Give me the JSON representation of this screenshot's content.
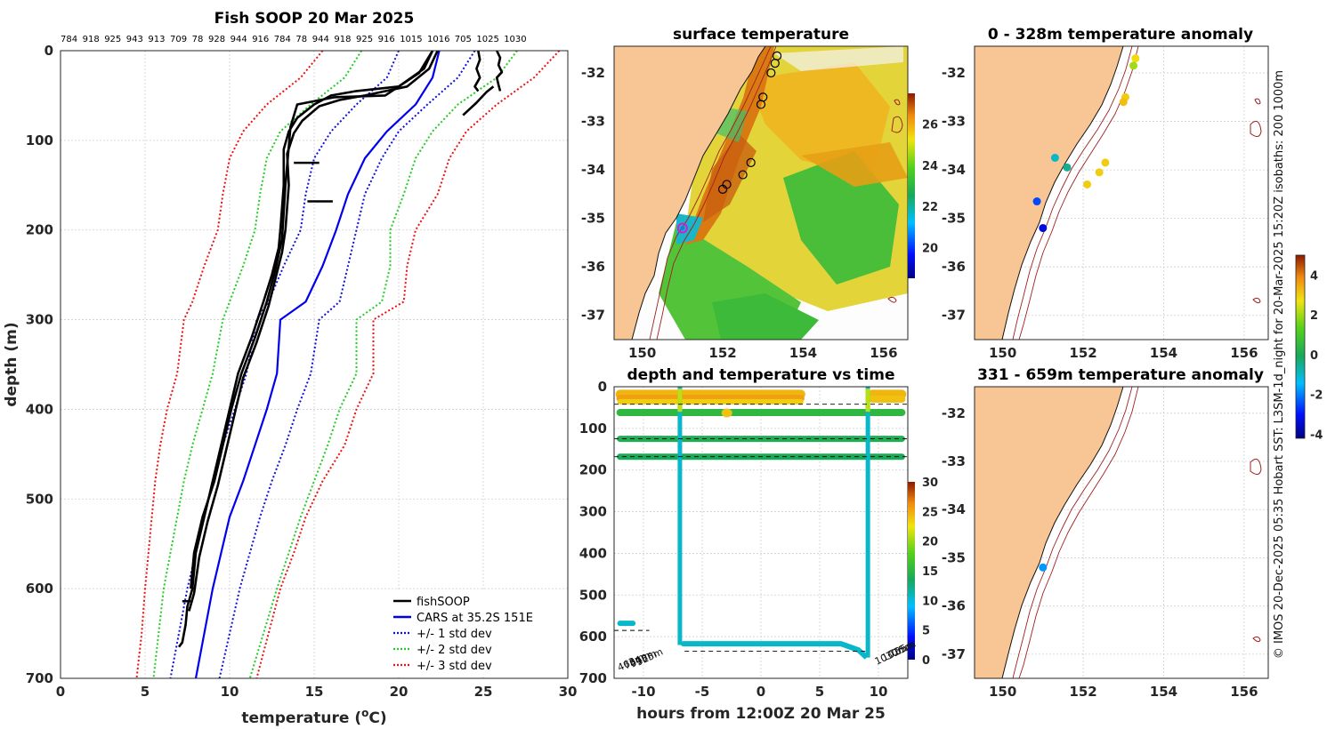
{
  "watermark": "© IMOS 20-Dec-2025 05:35 Hobart SST: L3SM-1d_night for 20-Mar-2025 15:20Z isobaths: 200  1000m",
  "colors": {
    "fish": "#000000",
    "cars": "#0000ee",
    "sd1": "#1010dd",
    "sd2": "#22cc22",
    "sd3": "#ee1111",
    "land": "#f8c695",
    "isobath": "#a02020"
  },
  "panels": {
    "profile_title": "Fish SOOP 20 Mar 2025",
    "sst_title": "surface temperature",
    "anom1_title": "0 - 328m temperature anomaly",
    "anom2_title": "331 - 659m temperature anomaly",
    "timeseries_title": "depth and temperature vs time"
  },
  "chart_data": [
    {
      "id": "profile",
      "type": "line",
      "title": "Fish SOOP 20 Mar 2025",
      "xlabel": "temperature (°C)",
      "ylabel": "depth (m)",
      "xlim": [
        0,
        30
      ],
      "ylim": [
        700,
        0
      ],
      "xticks": [
        "0",
        "5",
        "10",
        "15",
        "20",
        "25",
        "30"
      ],
      "yticks": [
        "0",
        "100",
        "200",
        "300",
        "400",
        "500",
        "600",
        "700"
      ],
      "top_labels": [
        "784",
        "918",
        "925",
        "943",
        "913",
        "709",
        "78",
        "928",
        "944",
        "916",
        "784",
        "78",
        "944",
        "918",
        "925",
        "916",
        "1015",
        "1016",
        "705",
        "1025",
        "1030"
      ],
      "legend": [
        "fishSOOP",
        "CARS at 35.2S 151E",
        "+/- 1 std dev",
        "+/- 2 std dev",
        "+/- 3 std dev"
      ],
      "series": [
        {
          "name": "CARS at 35.2S 151E",
          "style": "solid",
          "x": [
            22.4,
            22.0,
            21.0,
            19.3,
            18.0,
            17.0,
            16.3,
            15.5,
            14.5,
            13.0,
            12.8,
            12.2,
            11.5,
            10.8,
            10.0,
            9.5,
            9.0,
            8.5,
            8.0
          ],
          "y": [
            0,
            30,
            60,
            90,
            120,
            160,
            200,
            240,
            280,
            300,
            360,
            400,
            440,
            480,
            520,
            560,
            600,
            650,
            700
          ]
        },
        {
          "name": "+/- 1 std dev",
          "style": "dotted",
          "x": [
            20.0,
            19.3,
            17.5,
            16.0,
            15.0,
            14.5,
            14.2,
            13.2,
            12.3,
            11.6,
            11.0,
            10.3,
            9.6,
            9.0,
            8.5,
            8.0,
            7.5,
            7.0,
            6.5
          ],
          "y": [
            0,
            30,
            60,
            90,
            120,
            160,
            200,
            240,
            280,
            300,
            360,
            400,
            440,
            480,
            520,
            560,
            600,
            650,
            700
          ]
        },
        {
          "name": "+/- 1 std dev",
          "style": "dotted",
          "x": [
            24.5,
            23.5,
            21.7,
            20.0,
            19.0,
            18.0,
            17.5,
            17.0,
            16.5,
            15.3,
            14.8,
            14.0,
            13.3,
            12.5,
            11.8,
            11.2,
            10.6,
            10.0,
            9.4
          ],
          "y": [
            0,
            30,
            60,
            90,
            120,
            160,
            200,
            240,
            280,
            300,
            360,
            400,
            440,
            480,
            520,
            560,
            600,
            650,
            700
          ]
        },
        {
          "name": "+/- 2 std dev",
          "style": "dotted",
          "x": [
            17.8,
            16.8,
            14.8,
            13.0,
            12.2,
            11.8,
            11.5,
            10.8,
            10.0,
            9.6,
            9.0,
            8.4,
            7.8,
            7.3,
            6.9,
            6.5,
            6.1,
            5.8,
            5.5
          ],
          "y": [
            0,
            30,
            60,
            90,
            120,
            160,
            200,
            240,
            280,
            300,
            360,
            400,
            440,
            480,
            520,
            560,
            600,
            650,
            700
          ]
        },
        {
          "name": "+/- 2 std dev",
          "style": "dotted",
          "x": [
            27.0,
            25.8,
            23.5,
            22.0,
            21.0,
            20.3,
            19.5,
            19.5,
            19.0,
            17.5,
            17.5,
            16.5,
            15.8,
            15.0,
            14.2,
            13.5,
            12.8,
            12.0,
            11.2
          ],
          "y": [
            0,
            30,
            60,
            90,
            120,
            160,
            200,
            240,
            280,
            300,
            360,
            400,
            440,
            480,
            520,
            560,
            600,
            650,
            700
          ]
        },
        {
          "name": "+/- 3 std dev",
          "style": "dotted",
          "x": [
            15.5,
            14.2,
            12.2,
            10.8,
            10.0,
            9.6,
            9.3,
            8.5,
            7.8,
            7.3,
            6.9,
            6.3,
            5.9,
            5.6,
            5.4,
            5.2,
            5.0,
            4.8,
            4.5
          ],
          "y": [
            0,
            30,
            60,
            90,
            120,
            160,
            200,
            240,
            280,
            300,
            360,
            400,
            440,
            480,
            520,
            560,
            600,
            650,
            700
          ]
        },
        {
          "name": "+/- 3 std dev",
          "style": "dotted",
          "x": [
            29.5,
            28.0,
            25.8,
            24.0,
            23.0,
            22.3,
            21.0,
            20.5,
            20.3,
            18.5,
            18.5,
            17.5,
            16.8,
            15.5,
            14.5,
            13.8,
            13.0,
            12.3,
            11.6
          ],
          "y": [
            0,
            30,
            60,
            90,
            120,
            160,
            200,
            240,
            280,
            300,
            360,
            400,
            440,
            480,
            520,
            560,
            600,
            650,
            700
          ]
        },
        {
          "name": "fishSOOP",
          "style": "solid",
          "x": [
            22.0,
            21.5,
            20.0,
            17.5,
            16.0,
            15.0,
            14.0,
            13.5,
            13.2,
            13.2,
            13.0,
            12.9,
            12.5,
            12.0,
            11.3,
            10.5,
            10.0,
            9.5,
            9.0,
            8.5,
            8.0,
            7.8,
            7.5,
            7.4,
            7.2,
            7.0
          ],
          "y": [
            0,
            20,
            40,
            45,
            50,
            60,
            75,
            90,
            110,
            150,
            200,
            220,
            250,
            280,
            320,
            360,
            400,
            440,
            480,
            520,
            560,
            600,
            620,
            640,
            660,
            665
          ]
        },
        {
          "name": "fishSOOP",
          "style": "solid",
          "x": [
            22.3,
            21.8,
            20.5,
            18.0,
            16.5,
            15.3,
            14.3,
            13.8,
            13.4,
            13.5,
            13.3,
            13.1,
            12.7,
            12.3,
            11.6,
            10.8,
            10.3,
            9.8,
            9.3,
            8.7,
            8.2,
            7.9,
            7.6
          ],
          "y": [
            0,
            20,
            40,
            50,
            55,
            62,
            78,
            92,
            115,
            150,
            200,
            225,
            255,
            285,
            325,
            365,
            405,
            445,
            485,
            525,
            565,
            605,
            625
          ]
        },
        {
          "name": "fishSOOP",
          "style": "solid",
          "x": [
            22.0,
            21.2,
            19.2,
            16.2,
            14.0,
            13.6,
            13.3,
            13.1,
            12.7,
            12.2,
            11.5,
            10.7,
            10.1,
            9.6,
            9.1,
            8.4,
            7.9,
            7.7
          ],
          "y": [
            0,
            25,
            50,
            52,
            60,
            85,
            150,
            210,
            245,
            280,
            320,
            360,
            400,
            440,
            480,
            520,
            560,
            600
          ]
        },
        {
          "name": "fishSOOP",
          "style": "solid",
          "x": [
            24.7,
            24.8,
            24.6,
            24.8,
            24.5,
            24.7
          ],
          "y": [
            0,
            10,
            20,
            30,
            40,
            45
          ]
        },
        {
          "name": "fishSOOP",
          "style": "solid",
          "x": [
            25.8,
            26.0,
            25.9,
            26.1,
            25.8,
            25.9,
            26.0
          ],
          "y": [
            0,
            8,
            16,
            24,
            30,
            38,
            45
          ]
        },
        {
          "name": "fishSOOP",
          "style": "solid",
          "x": [
            23.8,
            24.2,
            24.6,
            24.9,
            25.2,
            25.6
          ],
          "y": [
            72,
            65,
            58,
            52,
            46,
            40
          ]
        }
      ]
    },
    {
      "id": "sst",
      "type": "heatmap",
      "title": "surface temperature",
      "xticks": [
        "150",
        "152",
        "154",
        "156"
      ],
      "yticks": [
        "-32",
        "-33",
        "-34",
        "-35",
        "-36",
        "-37"
      ],
      "colorbar_ticks": [
        "20",
        "22",
        "24",
        "26"
      ],
      "colorbar_range": [
        18.5,
        27.5
      ],
      "markers": [
        {
          "lon": 153.35,
          "lat": -31.65
        },
        {
          "lon": 153.3,
          "lat": -31.8
        },
        {
          "lon": 153.2,
          "lat": -32.0
        },
        {
          "lon": 153.0,
          "lat": -32.5
        },
        {
          "lon": 152.95,
          "lat": -32.65
        },
        {
          "lon": 152.7,
          "lat": -33.85
        },
        {
          "lon": 152.5,
          "lat": -34.1
        },
        {
          "lon": 152.1,
          "lat": -34.3
        },
        {
          "lon": 152.0,
          "lat": -34.4
        }
      ],
      "highlight": {
        "lon": 151.0,
        "lat": -35.2
      }
    },
    {
      "id": "timeseries",
      "type": "scatter",
      "title": "depth and temperature vs time",
      "xlabel": "hours from 12:00Z 20 Mar 25",
      "xlim": [
        -12.5,
        12.5
      ],
      "ylim": [
        700,
        0
      ],
      "xticks": [
        "-10",
        "-5",
        "0",
        "5",
        "10"
      ],
      "yticks": [
        "0",
        "100",
        "200",
        "300",
        "400",
        "500",
        "600",
        "700"
      ],
      "colorbar_ticks": [
        "0",
        "5",
        "10",
        "15",
        "20",
        "25",
        "30"
      ],
      "colorbar_range": [
        0,
        30
      ],
      "dashed_depths": [
        42,
        125,
        168,
        585,
        635
      ],
      "depth_labels": [
        "463m",
        "784m",
        "918m",
        "925m",
        "1030m",
        "1025m",
        "705m"
      ]
    },
    {
      "id": "anom1",
      "type": "scatter",
      "title": "0 - 328m temperature anomaly",
      "xticks": [
        "150",
        "152",
        "154",
        "156"
      ],
      "yticks": [
        "-32",
        "-33",
        "-34",
        "-35",
        "-36",
        "-37"
      ],
      "colorbar_ticks": [
        "-4",
        "-2",
        "0",
        "2",
        "4"
      ],
      "colorbar_range": [
        -4.2,
        5
      ],
      "points": [
        {
          "lon": 153.3,
          "lat": -31.7,
          "v": 2.8
        },
        {
          "lon": 153.25,
          "lat": -31.85,
          "v": 2.0
        },
        {
          "lon": 153.05,
          "lat": -32.5,
          "v": 3.0
        },
        {
          "lon": 153.0,
          "lat": -32.6,
          "v": 3.2
        },
        {
          "lon": 152.55,
          "lat": -33.85,
          "v": 3.0
        },
        {
          "lon": 152.4,
          "lat": -34.05,
          "v": 3.0
        },
        {
          "lon": 152.1,
          "lat": -34.3,
          "v": 3.0
        },
        {
          "lon": 151.6,
          "lat": -33.95,
          "v": -0.5
        },
        {
          "lon": 151.3,
          "lat": -33.75,
          "v": -1.0
        },
        {
          "lon": 150.85,
          "lat": -34.65,
          "v": -2.5
        },
        {
          "lon": 151.0,
          "lat": -35.2,
          "v": -3.3
        }
      ]
    },
    {
      "id": "anom2",
      "type": "scatter",
      "title": "331 - 659m temperature anomaly",
      "xticks": [
        "150",
        "152",
        "154",
        "156"
      ],
      "yticks": [
        "-32",
        "-33",
        "-34",
        "-35",
        "-36",
        "-37"
      ],
      "points": [
        {
          "lon": 151.0,
          "lat": -35.2,
          "v": -1.8
        }
      ]
    }
  ]
}
